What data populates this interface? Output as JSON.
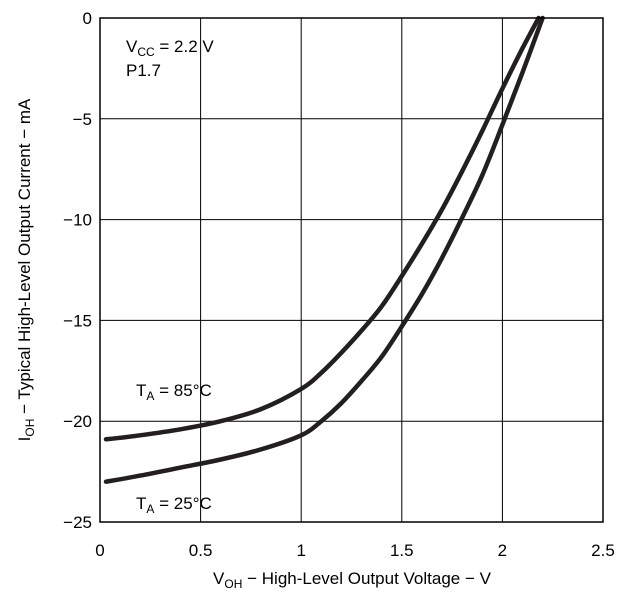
{
  "chart_data": {
    "type": "line",
    "title": "",
    "xlabel": {
      "main": "V",
      "sub": "OH",
      "rest": " − High-Level Output Voltage − V"
    },
    "ylabel": {
      "main": "I",
      "sub": "OH",
      "rest": " − Typical High-Level Output Current − mA"
    },
    "xlim": [
      0,
      2.5
    ],
    "ylim": [
      -25,
      0
    ],
    "xticks": [
      0,
      0.5,
      1,
      1.5,
      2,
      2.5
    ],
    "xtick_labels": [
      "0",
      "0.5",
      "1",
      "1.5",
      "2",
      "2.5"
    ],
    "yticks": [
      0,
      -5,
      -10,
      -15,
      -20,
      -25
    ],
    "ytick_labels": [
      "0",
      "−5",
      "−10",
      "−15",
      "−20",
      "−25"
    ],
    "grid": true,
    "conditions": {
      "vcc": {
        "main": "V",
        "sub": "CC",
        "rest": " = 2.2 V"
      },
      "pin": "P1.7"
    },
    "series": [
      {
        "name": {
          "main": "T",
          "sub": "A",
          "rest": " = 85°C"
        },
        "points": [
          [
            0.03,
            -20.9
          ],
          [
            0.2,
            -20.7
          ],
          [
            0.4,
            -20.4
          ],
          [
            0.6,
            -20.0
          ],
          [
            0.8,
            -19.4
          ],
          [
            1.0,
            -18.4
          ],
          [
            1.1,
            -17.6
          ],
          [
            1.2,
            -16.6
          ],
          [
            1.3,
            -15.5
          ],
          [
            1.4,
            -14.3
          ],
          [
            1.5,
            -12.8
          ],
          [
            1.6,
            -11.2
          ],
          [
            1.7,
            -9.5
          ],
          [
            1.8,
            -7.6
          ],
          [
            1.9,
            -5.6
          ],
          [
            2.0,
            -3.5
          ],
          [
            2.1,
            -1.5
          ],
          [
            2.18,
            0.0
          ]
        ]
      },
      {
        "name": {
          "main": "T",
          "sub": "A",
          "rest": " = 25°C"
        },
        "points": [
          [
            0.03,
            -23.0
          ],
          [
            0.2,
            -22.7
          ],
          [
            0.4,
            -22.3
          ],
          [
            0.6,
            -21.9
          ],
          [
            0.8,
            -21.4
          ],
          [
            1.0,
            -20.7
          ],
          [
            1.1,
            -20.0
          ],
          [
            1.2,
            -19.1
          ],
          [
            1.3,
            -18.0
          ],
          [
            1.4,
            -16.8
          ],
          [
            1.5,
            -15.3
          ],
          [
            1.6,
            -13.7
          ],
          [
            1.7,
            -11.9
          ],
          [
            1.8,
            -9.9
          ],
          [
            1.9,
            -7.8
          ],
          [
            2.0,
            -5.3
          ],
          [
            2.1,
            -2.7
          ],
          [
            2.2,
            0.0
          ]
        ]
      }
    ]
  }
}
